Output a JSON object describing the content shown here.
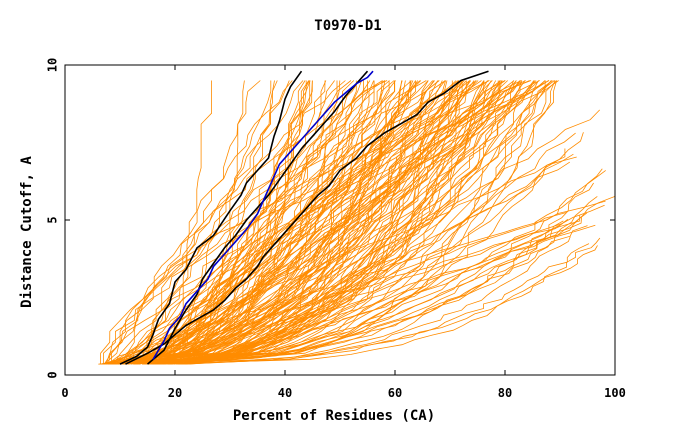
{
  "chart_data": {
    "type": "line",
    "title": "T0970-D1",
    "xlabel": "Percent of Residues (CA)",
    "ylabel": "Distance Cutoff, A",
    "xlim": [
      0,
      100
    ],
    "ylim": [
      0,
      10
    ],
    "x_ticks": [
      0,
      20,
      40,
      60,
      80,
      100
    ],
    "y_ticks": [
      0,
      5,
      10
    ],
    "colors": {
      "models": "#ff8c00",
      "reference": "#000000",
      "highlight": "#0000cc",
      "axis": "#000000"
    },
    "series": [
      {
        "role": "black-left",
        "color": "#000000",
        "points": [
          [
            10,
            0.35
          ],
          [
            13,
            0.6
          ],
          [
            15,
            0.9
          ],
          [
            16,
            1.3
          ],
          [
            17,
            1.8
          ],
          [
            19,
            2.3
          ],
          [
            20,
            3.0
          ],
          [
            22,
            3.4
          ],
          [
            24,
            4.1
          ],
          [
            27,
            4.5
          ],
          [
            30,
            5.3
          ],
          [
            32,
            5.8
          ],
          [
            33,
            6.2
          ],
          [
            35,
            6.6
          ],
          [
            37,
            7.0
          ],
          [
            38,
            7.7
          ],
          [
            39,
            8.2
          ],
          [
            40,
            8.9
          ],
          [
            41,
            9.3
          ],
          [
            43,
            9.8
          ]
        ]
      },
      {
        "role": "black-mid",
        "color": "#000000",
        "points": [
          [
            11,
            0.35
          ],
          [
            15,
            0.7
          ],
          [
            18,
            1.0
          ],
          [
            20,
            1.3
          ],
          [
            22,
            1.6
          ],
          [
            24,
            1.8
          ],
          [
            27,
            2.1
          ],
          [
            29,
            2.4
          ],
          [
            31,
            2.8
          ],
          [
            33,
            3.1
          ],
          [
            35,
            3.5
          ],
          [
            36,
            3.8
          ],
          [
            38,
            4.2
          ],
          [
            40,
            4.6
          ],
          [
            42,
            5.0
          ],
          [
            44,
            5.4
          ],
          [
            46,
            5.8
          ],
          [
            48,
            6.1
          ],
          [
            50,
            6.6
          ],
          [
            53,
            7.0
          ],
          [
            55,
            7.4
          ],
          [
            58,
            7.8
          ],
          [
            61,
            8.1
          ],
          [
            64,
            8.4
          ],
          [
            66,
            8.8
          ],
          [
            69,
            9.1
          ],
          [
            72,
            9.5
          ],
          [
            77,
            9.8
          ]
        ]
      },
      {
        "role": "black-right",
        "color": "#000000",
        "points": [
          [
            15,
            0.35
          ],
          [
            18,
            0.8
          ],
          [
            20,
            1.5
          ],
          [
            22,
            2.1
          ],
          [
            24,
            2.6
          ],
          [
            25,
            3.1
          ],
          [
            27,
            3.6
          ],
          [
            29,
            4.1
          ],
          [
            31,
            4.5
          ],
          [
            33,
            5.0
          ],
          [
            35,
            5.4
          ],
          [
            37,
            5.8
          ],
          [
            39,
            6.3
          ],
          [
            41,
            6.8
          ],
          [
            43,
            7.3
          ],
          [
            45,
            7.7
          ],
          [
            47,
            8.1
          ],
          [
            49,
            8.5
          ],
          [
            51,
            9.0
          ],
          [
            53,
            9.4
          ],
          [
            55,
            9.8
          ]
        ]
      },
      {
        "role": "blue",
        "color": "#0000cc",
        "points": [
          [
            16,
            0.5
          ],
          [
            17,
            0.8
          ],
          [
            18,
            1.1
          ],
          [
            19,
            1.5
          ],
          [
            21,
            1.9
          ],
          [
            22,
            2.3
          ],
          [
            24,
            2.7
          ],
          [
            26,
            3.1
          ],
          [
            27,
            3.5
          ],
          [
            29,
            3.9
          ],
          [
            31,
            4.3
          ],
          [
            33,
            4.7
          ],
          [
            35,
            5.2
          ],
          [
            36,
            5.6
          ],
          [
            37,
            6.0
          ],
          [
            38,
            6.4
          ],
          [
            39,
            6.8
          ],
          [
            41,
            7.2
          ],
          [
            43,
            7.6
          ],
          [
            45,
            8.0
          ],
          [
            47,
            8.4
          ],
          [
            49,
            8.8
          ],
          [
            51,
            9.1
          ],
          [
            53,
            9.4
          ],
          [
            55,
            9.6
          ],
          [
            56,
            9.8
          ]
        ]
      }
    ]
  }
}
